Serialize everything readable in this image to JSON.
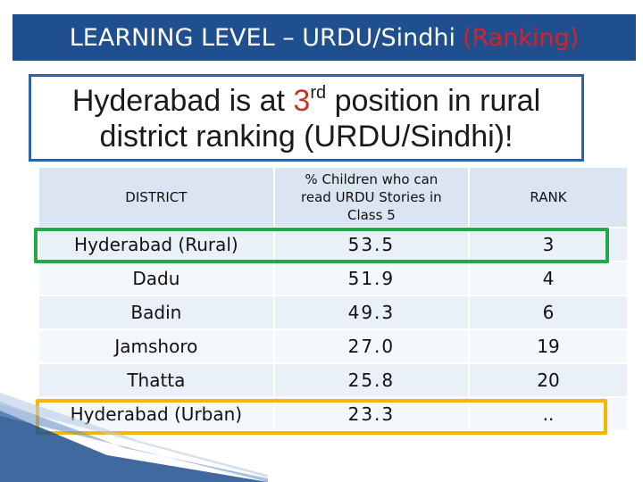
{
  "title": {
    "main": "LEARNING LEVEL – URDU/Sindhi",
    "accent": "(Ranking)"
  },
  "headline": {
    "part1": "Hyderabad is at ",
    "number": "3",
    "ordinal": "rd",
    "part2": " position in rural",
    "line2": "district ranking (URDU/Sindhi)!"
  },
  "table": {
    "headers": {
      "district": "DISTRICT",
      "percent": "% Children who can read URDU Stories in Class 5",
      "rank": "RANK"
    },
    "rows": [
      {
        "district": "Hyderabad (Rural)",
        "percent": "53.5",
        "rank": "3"
      },
      {
        "district": "Dadu",
        "percent": "51.9",
        "rank": "4"
      },
      {
        "district": "Badin",
        "percent": "49.3",
        "rank": "6"
      },
      {
        "district": "Jamshoro",
        "percent": "27.0",
        "rank": "19"
      },
      {
        "district": "Thatta",
        "percent": "25.8",
        "rank": "20"
      },
      {
        "district": "Hyderabad (Urban)",
        "percent": "23.3",
        "rank": ".."
      }
    ]
  },
  "colors": {
    "title_bg": "#1f4f8f",
    "accent": "#d62424",
    "highlight_rural": "#22a84a",
    "highlight_urban": "#f2b705"
  }
}
